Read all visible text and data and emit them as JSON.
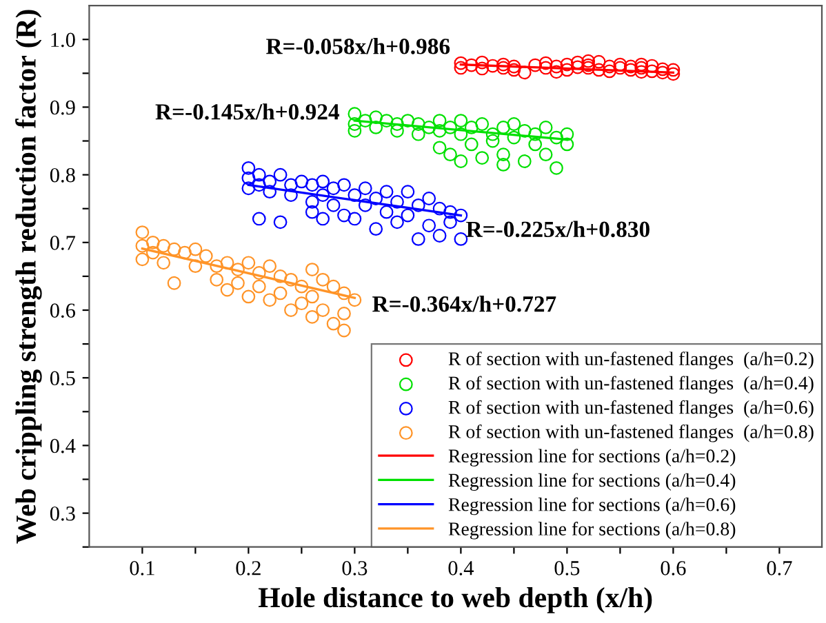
{
  "chart_data": {
    "type": "scatter",
    "xlabel": "Hole distance to web depth (x/h)",
    "ylabel": "Web crippling strength reduction factor (R)",
    "xlim": [
      0.05,
      0.74
    ],
    "ylim": [
      0.25,
      1.05
    ],
    "xticks": [
      0.1,
      0.2,
      0.3,
      0.4,
      0.5,
      0.6,
      0.7,
      {
        "value": 0.15,
        "label": null
      },
      {
        "value": 0.25,
        "label": null
      },
      {
        "value": 0.35,
        "label": null
      },
      {
        "value": 0.45,
        "label": null
      },
      {
        "value": 0.55,
        "label": null
      },
      {
        "value": 0.65,
        "label": null
      }
    ],
    "yticks": [
      0.3,
      0.4,
      0.5,
      0.6,
      0.7,
      0.8,
      0.9,
      {
        "value": 1.0,
        "label": "1.0"
      },
      {
        "value": 0.25,
        "label": null
      },
      {
        "value": 0.35,
        "label": null
      },
      {
        "value": 0.45,
        "label": null
      },
      {
        "value": 0.55,
        "label": null
      },
      {
        "value": 0.65,
        "label": null
      },
      {
        "value": 0.75,
        "label": null
      },
      {
        "value": 0.85,
        "label": null
      },
      {
        "value": 0.95,
        "label": null
      }
    ],
    "grid": false,
    "legend": "bottom right",
    "annotations": [
      "R=-0.058x/h+0.986",
      "R=-0.145x/h+0.924",
      "R=-0.225x/h+0.830",
      "R=-0.364x/h+0.727"
    ],
    "series": [
      {
        "name": "R of section with un-fastened flanges  (a/h=0.2)",
        "marker": "circle",
        "color": "#ff0000",
        "x": [
          0.4,
          0.4,
          0.41,
          0.42,
          0.42,
          0.43,
          0.44,
          0.45,
          0.45,
          0.47,
          0.48,
          0.48,
          0.49,
          0.5,
          0.5,
          0.51,
          0.51,
          0.52,
          0.52,
          0.53,
          0.53,
          0.54,
          0.54,
          0.55,
          0.55,
          0.56,
          0.56,
          0.57,
          0.57,
          0.58,
          0.58,
          0.59,
          0.59,
          0.6,
          0.6,
          0.46,
          0.49,
          0.44,
          0.52,
          0.57
        ],
        "values": [
          0.965,
          0.958,
          0.962,
          0.966,
          0.957,
          0.961,
          0.963,
          0.955,
          0.96,
          0.962,
          0.958,
          0.965,
          0.96,
          0.963,
          0.955,
          0.959,
          0.966,
          0.958,
          0.962,
          0.955,
          0.967,
          0.96,
          0.953,
          0.958,
          0.963,
          0.955,
          0.96,
          0.952,
          0.958,
          0.961,
          0.953,
          0.956,
          0.951,
          0.955,
          0.949,
          0.951,
          0.952,
          0.958,
          0.968,
          0.963
        ]
      },
      {
        "name": "R of section with un-fastened flanges  (a/h=0.4)",
        "marker": "circle",
        "color": "#00e000",
        "x": [
          0.3,
          0.3,
          0.3,
          0.31,
          0.32,
          0.32,
          0.33,
          0.34,
          0.34,
          0.35,
          0.36,
          0.36,
          0.37,
          0.38,
          0.38,
          0.38,
          0.39,
          0.39,
          0.4,
          0.4,
          0.41,
          0.41,
          0.42,
          0.42,
          0.43,
          0.43,
          0.44,
          0.44,
          0.45,
          0.45,
          0.46,
          0.46,
          0.47,
          0.47,
          0.48,
          0.48,
          0.49,
          0.49,
          0.5,
          0.5,
          0.4,
          0.44
        ],
        "values": [
          0.89,
          0.875,
          0.865,
          0.88,
          0.885,
          0.87,
          0.88,
          0.875,
          0.865,
          0.88,
          0.875,
          0.86,
          0.87,
          0.88,
          0.865,
          0.84,
          0.83,
          0.87,
          0.88,
          0.86,
          0.87,
          0.845,
          0.825,
          0.875,
          0.86,
          0.85,
          0.87,
          0.83,
          0.875,
          0.855,
          0.865,
          0.82,
          0.86,
          0.845,
          0.87,
          0.83,
          0.855,
          0.81,
          0.86,
          0.845,
          0.82,
          0.815
        ]
      },
      {
        "name": "R of section with un-fastened flanges  (a/h=0.6)",
        "marker": "circle",
        "color": "#0000ff",
        "x": [
          0.2,
          0.2,
          0.2,
          0.21,
          0.21,
          0.21,
          0.22,
          0.22,
          0.23,
          0.23,
          0.24,
          0.24,
          0.25,
          0.26,
          0.26,
          0.26,
          0.27,
          0.27,
          0.27,
          0.28,
          0.28,
          0.29,
          0.29,
          0.3,
          0.3,
          0.31,
          0.31,
          0.32,
          0.32,
          0.33,
          0.33,
          0.34,
          0.34,
          0.35,
          0.35,
          0.36,
          0.36,
          0.37,
          0.37,
          0.38,
          0.38,
          0.39,
          0.39,
          0.4,
          0.4
        ],
        "values": [
          0.81,
          0.795,
          0.78,
          0.8,
          0.785,
          0.735,
          0.79,
          0.775,
          0.8,
          0.73,
          0.785,
          0.77,
          0.79,
          0.785,
          0.76,
          0.745,
          0.79,
          0.77,
          0.735,
          0.78,
          0.755,
          0.785,
          0.74,
          0.77,
          0.735,
          0.78,
          0.755,
          0.765,
          0.72,
          0.775,
          0.745,
          0.76,
          0.73,
          0.775,
          0.74,
          0.705,
          0.755,
          0.765,
          0.725,
          0.75,
          0.71,
          0.745,
          0.73,
          0.74,
          0.705
        ]
      },
      {
        "name": "R of section with un-fastened flanges  (a/h=0.8)",
        "marker": "circle",
        "color": "#ff9428",
        "x": [
          0.1,
          0.1,
          0.1,
          0.11,
          0.11,
          0.12,
          0.12,
          0.13,
          0.13,
          0.14,
          0.15,
          0.16,
          0.17,
          0.17,
          0.18,
          0.18,
          0.19,
          0.19,
          0.2,
          0.2,
          0.21,
          0.21,
          0.22,
          0.22,
          0.23,
          0.23,
          0.24,
          0.24,
          0.25,
          0.25,
          0.26,
          0.26,
          0.26,
          0.27,
          0.27,
          0.28,
          0.28,
          0.29,
          0.29,
          0.3,
          0.29,
          0.15
        ],
        "values": [
          0.715,
          0.695,
          0.675,
          0.7,
          0.685,
          0.695,
          0.67,
          0.69,
          0.64,
          0.685,
          0.69,
          0.68,
          0.665,
          0.645,
          0.67,
          0.63,
          0.66,
          0.64,
          0.67,
          0.62,
          0.655,
          0.635,
          0.665,
          0.615,
          0.65,
          0.625,
          0.645,
          0.6,
          0.635,
          0.61,
          0.66,
          0.62,
          0.59,
          0.645,
          0.6,
          0.635,
          0.58,
          0.625,
          0.595,
          0.615,
          0.57,
          0.665
        ]
      },
      {
        "type": "line",
        "name": "Regression line for sections (a/h=0.2)",
        "color": "#ff0000",
        "x": [
          0.4,
          0.6
        ],
        "values": [
          0.963,
          0.951
        ]
      },
      {
        "type": "line",
        "name": "Regression line for sections (a/h=0.4)",
        "color": "#00e000",
        "x": [
          0.3,
          0.5
        ],
        "values": [
          0.88,
          0.852
        ]
      },
      {
        "type": "line",
        "name": "Regression line for sections (a/h=0.6)",
        "color": "#0000ff",
        "x": [
          0.2,
          0.4
        ],
        "values": [
          0.785,
          0.74
        ]
      },
      {
        "type": "line",
        "name": "Regression line for sections (a/h=0.8)",
        "color": "#ff9428",
        "x": [
          0.1,
          0.3
        ],
        "values": [
          0.691,
          0.618
        ]
      }
    ]
  }
}
